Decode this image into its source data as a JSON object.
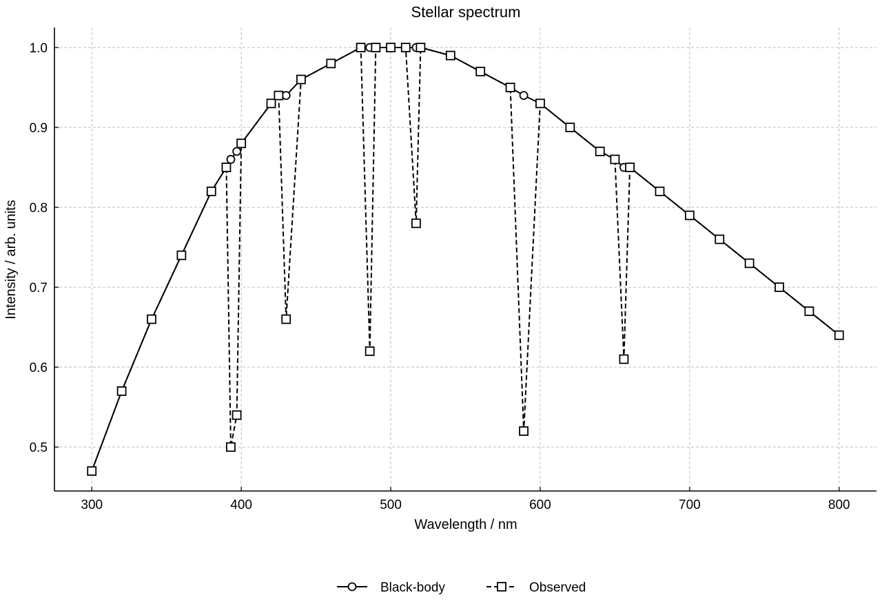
{
  "chart_data": {
    "type": "line",
    "title": "Stellar spectrum",
    "xlabel": "Wavelength / nm",
    "ylabel": "Intensity / arb. units",
    "xlim": [
      275,
      825
    ],
    "ylim": [
      0.445,
      1.025
    ],
    "xticks": [
      300,
      400,
      500,
      600,
      700,
      800
    ],
    "yticks": [
      0.5,
      0.6,
      0.7,
      0.8,
      0.9,
      1.0
    ],
    "grid": true,
    "legend_position": "bottom-center",
    "series": [
      {
        "name": "Black-body",
        "style": "solid",
        "marker": "circle",
        "color": "#000000",
        "x": [
          300,
          320,
          340,
          360,
          380,
          390,
          393,
          397,
          400,
          420,
          425,
          430,
          440,
          460,
          480,
          486,
          490,
          500,
          510,
          517,
          520,
          540,
          560,
          580,
          589,
          600,
          620,
          640,
          650,
          656,
          660,
          680,
          700,
          720,
          740,
          760,
          780,
          800
        ],
        "y": [
          0.47,
          0.57,
          0.66,
          0.74,
          0.82,
          0.85,
          0.86,
          0.87,
          0.88,
          0.93,
          0.94,
          0.94,
          0.96,
          0.98,
          1.0,
          1.0,
          1.0,
          1.0,
          1.0,
          1.0,
          1.0,
          0.99,
          0.97,
          0.95,
          0.94,
          0.93,
          0.9,
          0.87,
          0.86,
          0.85,
          0.85,
          0.82,
          0.79,
          0.76,
          0.73,
          0.7,
          0.67,
          0.64
        ]
      },
      {
        "name": "Observed",
        "style": "dashed",
        "marker": "square",
        "color": "#000000",
        "x": [
          300,
          320,
          340,
          360,
          380,
          390,
          393,
          397,
          400,
          420,
          425,
          430,
          440,
          460,
          480,
          486,
          490,
          500,
          510,
          517,
          520,
          540,
          560,
          580,
          589,
          600,
          620,
          640,
          650,
          656,
          660,
          680,
          700,
          720,
          740,
          760,
          780,
          800
        ],
        "y": [
          0.47,
          0.57,
          0.66,
          0.74,
          0.82,
          0.85,
          0.5,
          0.54,
          0.88,
          0.93,
          0.94,
          0.66,
          0.96,
          0.98,
          1.0,
          0.62,
          1.0,
          1.0,
          1.0,
          0.78,
          1.0,
          0.99,
          0.97,
          0.95,
          0.52,
          0.93,
          0.9,
          0.87,
          0.86,
          0.61,
          0.85,
          0.82,
          0.79,
          0.76,
          0.73,
          0.7,
          0.67,
          0.64
        ]
      }
    ]
  }
}
